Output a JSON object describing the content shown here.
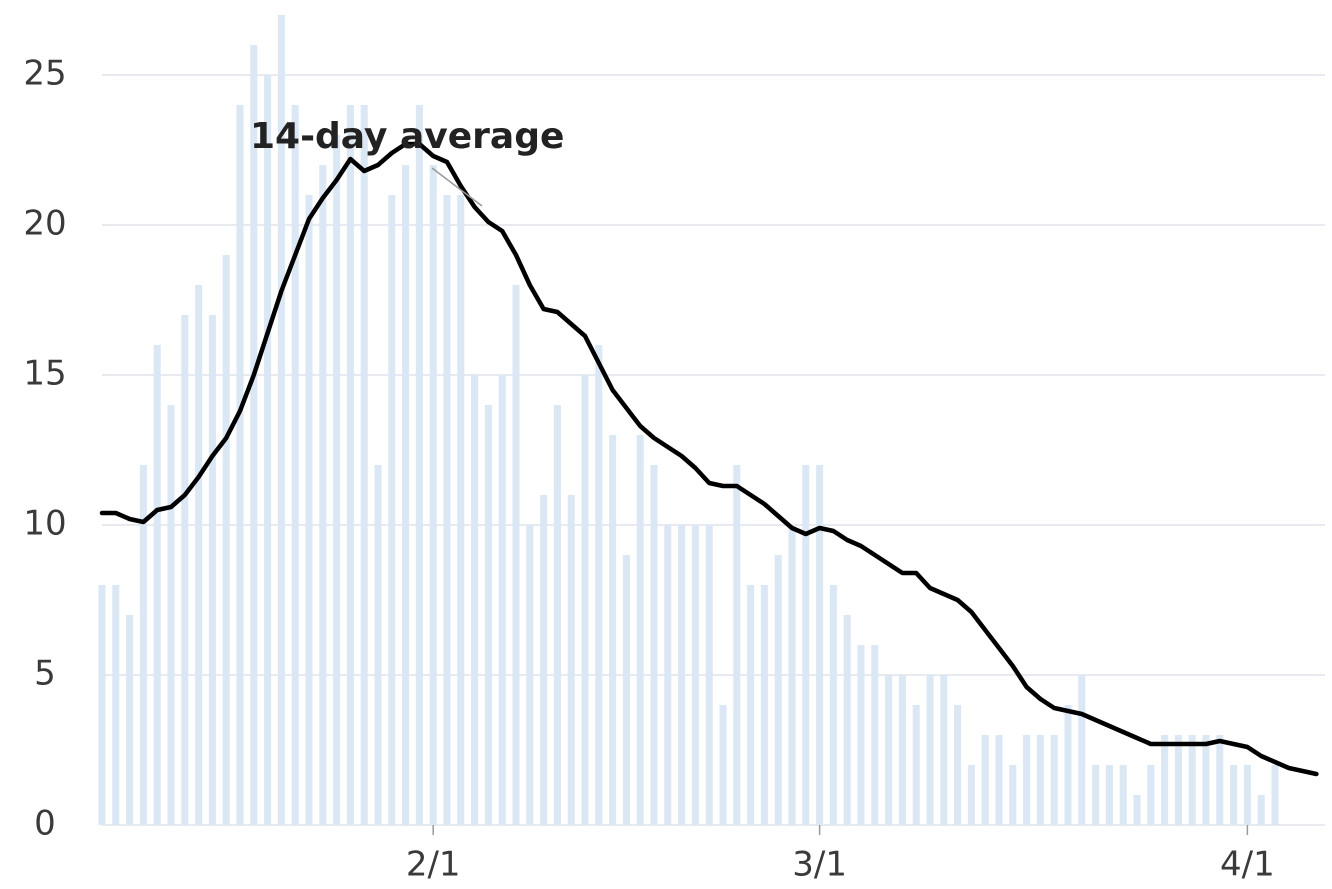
{
  "chart_data": {
    "type": "bar",
    "categories": [
      null,
      null,
      null,
      null,
      null,
      null,
      null,
      null,
      null,
      null,
      null,
      null,
      null,
      null,
      null,
      null,
      null,
      null,
      null,
      null,
      null,
      null,
      null,
      null,
      "2/1",
      null,
      null,
      null,
      null,
      null,
      null,
      null,
      null,
      null,
      null,
      null,
      null,
      null,
      null,
      null,
      null,
      null,
      null,
      null,
      null,
      null,
      null,
      null,
      null,
      null,
      null,
      null,
      "3/1",
      null,
      null,
      null,
      null,
      null,
      null,
      null,
      null,
      null,
      null,
      null,
      null,
      null,
      null,
      null,
      null,
      null,
      null,
      null,
      null,
      null,
      null,
      null,
      null,
      null,
      null,
      null,
      null,
      null,
      null,
      "4/1",
      null,
      null,
      null,
      null,
      null
    ],
    "series": [
      {
        "type": "bar",
        "color": "#dae7f5",
        "values": [
          8,
          8,
          7,
          12,
          16,
          14,
          17,
          18,
          17,
          19,
          24,
          26,
          25,
          27,
          24,
          21,
          22,
          23,
          24,
          24,
          12,
          21,
          22,
          24,
          22,
          21,
          21,
          15,
          14,
          15,
          18,
          10,
          11,
          14,
          11,
          15,
          16,
          13,
          9,
          13,
          12,
          10,
          10,
          10,
          10,
          4,
          12,
          8,
          8,
          9,
          10,
          12,
          12,
          8,
          7,
          6,
          6,
          5,
          5,
          4,
          5,
          5,
          4,
          2,
          3,
          3,
          2,
          3,
          3,
          3,
          4,
          5,
          2,
          2,
          2,
          1,
          2,
          3,
          3,
          3,
          3,
          3,
          2,
          2,
          1,
          2,
          null,
          null,
          null
        ]
      },
      {
        "type": "line",
        "color": "#000000",
        "values": [
          10.4,
          10.4,
          10.2,
          10.1,
          10.5,
          10.6,
          11,
          11.6,
          12.3,
          12.9,
          13.8,
          15,
          16.4,
          17.8,
          19,
          20.2,
          20.9,
          21.5,
          22.2,
          21.8,
          22,
          22.4,
          22.7,
          22.7,
          22.3,
          22.1,
          21.3,
          20.6,
          20.1,
          19.8,
          19,
          18,
          17.2,
          17.1,
          16.7,
          16.3,
          15.4,
          14.5,
          13.9,
          13.3,
          12.9,
          12.6,
          12.3,
          11.9,
          11.4,
          11.3,
          11.3,
          11,
          10.7,
          10.3,
          9.9,
          9.7,
          9.9,
          9.8,
          9.5,
          9.3,
          9,
          8.7,
          8.4,
          8.4,
          7.9,
          7.7,
          7.5,
          7.1,
          6.5,
          5.9,
          5.3,
          4.6,
          4.2,
          3.9,
          3.8,
          3.7,
          3.5,
          3.3,
          3.1,
          2.9,
          2.7,
          2.7,
          2.7,
          2.7,
          2.7,
          2.8,
          2.7,
          2.6,
          2.3,
          2.1,
          1.9,
          1.8,
          1.7
        ]
      }
    ],
    "ylim": [
      0,
      25
    ],
    "yticks": [
      0,
      5,
      10,
      15,
      20,
      25
    ],
    "grid": true,
    "annotations": [
      {
        "text": "14-day average"
      }
    ]
  }
}
